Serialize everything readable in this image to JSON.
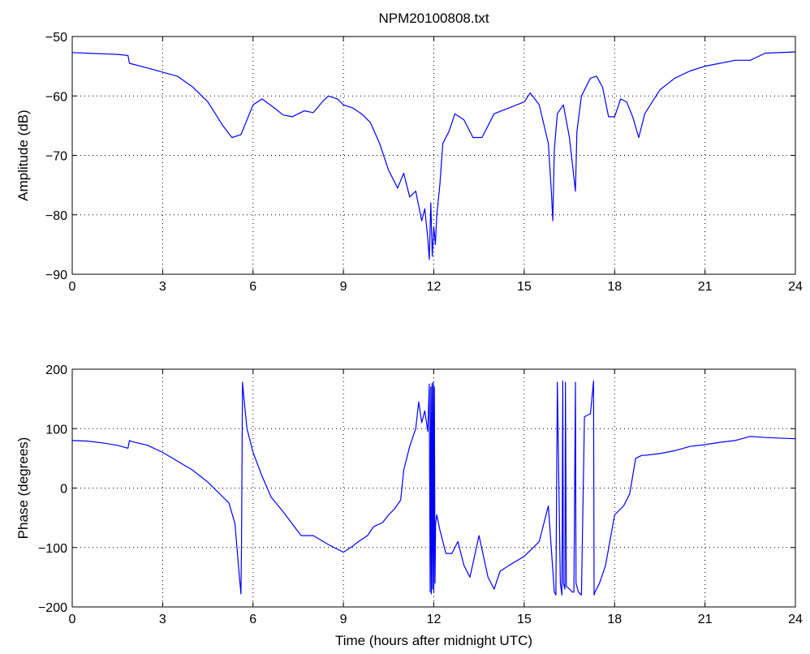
{
  "colors": {
    "series": "#0000ff",
    "axis": "#000000",
    "background": "#ffffff"
  },
  "chart_data": [
    {
      "type": "line",
      "title": "NPM20100808.txt",
      "xlabel": "",
      "ylabel": "Amplitude (dB)",
      "xlim": [
        0,
        24
      ],
      "ylim": [
        -90,
        -50
      ],
      "xticks": [
        0,
        3,
        6,
        9,
        12,
        15,
        18,
        21,
        24
      ],
      "yticks": [
        -90,
        -80,
        -70,
        -60,
        -50
      ],
      "grid": true,
      "series": [
        {
          "x": [
            0,
            1.5,
            1.85,
            1.9,
            2.5,
            3,
            3.5,
            4,
            4.5,
            5,
            5.3,
            5.6,
            6,
            6.3,
            6.7,
            7,
            7.3,
            7.7,
            8,
            8.3,
            8.5,
            8.8,
            9,
            9.3,
            9.6,
            9.9,
            10.2,
            10.5,
            10.8,
            11,
            11.2,
            11.4,
            11.6,
            11.7,
            11.8,
            11.85,
            11.9,
            11.95,
            12,
            12.05,
            12.1,
            12.2,
            12.3,
            12.5,
            12.7,
            13,
            13.3,
            13.6,
            14,
            14.5,
            15,
            15.2,
            15.5,
            15.8,
            15.9,
            15.95,
            16,
            16.1,
            16.3,
            16.5,
            16.7,
            16.75,
            16.9,
            17.2,
            17.4,
            17.6,
            17.8,
            18,
            18.2,
            18.4,
            18.6,
            18.8,
            19,
            19.5,
            20,
            20.5,
            21,
            21.5,
            22,
            22.5,
            23,
            24
          ],
          "y": [
            -52.7,
            -53,
            -53.2,
            -54.5,
            -55.3,
            -56,
            -56.7,
            -58.5,
            -61,
            -65,
            -67,
            -66.5,
            -61.5,
            -60.5,
            -62,
            -63.2,
            -63.5,
            -62.5,
            -62.8,
            -61,
            -60,
            -60.5,
            -61.5,
            -62,
            -63,
            -64.5,
            -68,
            -72.5,
            -75.5,
            -73,
            -77,
            -76,
            -81,
            -79,
            -84,
            -87.5,
            -78,
            -87,
            -82,
            -85,
            -80,
            -75,
            -68,
            -66,
            -63,
            -64,
            -67,
            -67,
            -63,
            -62,
            -61,
            -59.5,
            -61.5,
            -68,
            -76,
            -81,
            -69,
            -63,
            -61.5,
            -67,
            -76,
            -66,
            -60,
            -57,
            -56.7,
            -58.5,
            -63.5,
            -63.5,
            -60.5,
            -61,
            -63.5,
            -67,
            -63,
            -59,
            -57,
            -55.8,
            -55,
            -54.5,
            -54,
            -54,
            -52.8,
            -52.6
          ]
        }
      ]
    },
    {
      "type": "line",
      "title": "",
      "xlabel": "Time (hours after midnight UTC)",
      "ylabel": "Phase (degrees)",
      "xlim": [
        0,
        24
      ],
      "ylim": [
        -200,
        200
      ],
      "xticks": [
        0,
        3,
        6,
        9,
        12,
        15,
        18,
        21,
        24
      ],
      "yticks": [
        -200,
        -100,
        0,
        100,
        200
      ],
      "grid": true,
      "series": [
        {
          "x": [
            0,
            0.5,
            1,
            1.5,
            1.85,
            1.9,
            2,
            2.5,
            3,
            3.5,
            4,
            4.5,
            5,
            5.2,
            5.4,
            5.55,
            5.6,
            5.62,
            5.65,
            5.7,
            5.8,
            6,
            6.3,
            6.6,
            7,
            7.3,
            7.6,
            8,
            8.5,
            9,
            9.3,
            9.5,
            9.8,
            10,
            10.3,
            10.5,
            10.7,
            10.9,
            11,
            11.2,
            11.4,
            11.5,
            11.6,
            11.7,
            11.8,
            11.85,
            11.88,
            11.9,
            11.92,
            11.94,
            11.96,
            11.98,
            12,
            12.02,
            12.04,
            12.06,
            12.1,
            12.2,
            12.4,
            12.6,
            12.8,
            13,
            13.2,
            13.5,
            13.8,
            14,
            14.2,
            14.5,
            15,
            15.3,
            15.5,
            15.8,
            16,
            16.05,
            16.1,
            16.2,
            16.25,
            16.28,
            16.3,
            16.35,
            16.37,
            16.4,
            16.5,
            16.6,
            16.65,
            16.7,
            16.72,
            16.8,
            16.9,
            17,
            17.2,
            17.3,
            17.32,
            17.35,
            17.5,
            17.7,
            18,
            18.3,
            18.5,
            18.7,
            18.9,
            19,
            19.5,
            20,
            20.5,
            21,
            21.5,
            22,
            22.5,
            23,
            24
          ],
          "y": [
            80,
            79,
            76,
            72,
            67,
            80,
            78,
            72,
            60,
            45,
            30,
            10,
            -15,
            -25,
            -60,
            -150,
            -178,
            -90,
            178,
            150,
            100,
            60,
            20,
            -15,
            -40,
            -60,
            -80,
            -80,
            -95,
            -108,
            -98,
            -90,
            -80,
            -65,
            -58,
            -45,
            -35,
            -20,
            30,
            70,
            100,
            145,
            110,
            130,
            95,
            175,
            -175,
            170,
            -178,
            176,
            -170,
            178,
            -175,
            170,
            -160,
            -60,
            -45,
            -70,
            -110,
            -110,
            -90,
            -130,
            -150,
            -80,
            -150,
            -170,
            -140,
            -130,
            -115,
            -100,
            -90,
            -30,
            -175,
            -180,
            178,
            -160,
            -180,
            180,
            -160,
            -170,
            178,
            -165,
            -170,
            -175,
            -175,
            178,
            -160,
            -175,
            -180,
            120,
            125,
            180,
            -180,
            -175,
            -160,
            -130,
            -45,
            -30,
            -10,
            50,
            55,
            55,
            58,
            63,
            70,
            73,
            77,
            80,
            87,
            85,
            83
          ]
        }
      ]
    }
  ]
}
